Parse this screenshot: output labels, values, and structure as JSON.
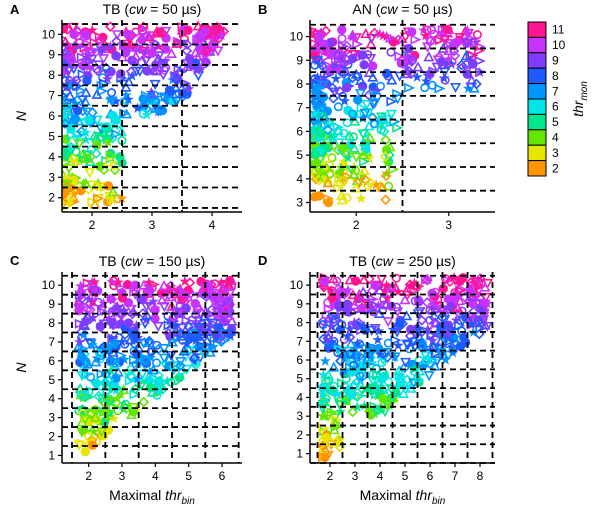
{
  "figure": {
    "colorbar": {
      "title": "thr",
      "title_sub": "mon",
      "levels": [
        11,
        10,
        9,
        8,
        7,
        6,
        5,
        4,
        3,
        2
      ],
      "colors": {
        "11": "#ff1493",
        "10": "#c832ff",
        "9": "#7f3cff",
        "8": "#1e5aff",
        "7": "#0096ff",
        "6": "#00e6e6",
        "5": "#00e68c",
        "4": "#64e600",
        "3": "#e6e600",
        "2": "#ff9600",
        "1": "#e60000"
      }
    },
    "shared_xlabel": {
      "main": "Maximal ",
      "italic": "thr",
      "sub": "bin"
    }
  },
  "chart_data": [
    {
      "panel": "A",
      "type": "scatter",
      "title": "TB (cw = 50 µs)",
      "title_parts": [
        "TB (",
        "cw",
        " = 50 µs)"
      ],
      "xlabel": "",
      "ylabel": "N",
      "xlim": [
        1.5,
        4.5
      ],
      "ylim": [
        1.3,
        10.7
      ],
      "xticks": [
        2,
        3,
        4
      ],
      "yticks": [
        2,
        3,
        4,
        5,
        6,
        7,
        8,
        9,
        10
      ],
      "grid": "dashed",
      "points_description": "Dense scatter of markers (circles, triangles, stars, diamonds) colored by thr_mon; values below are representative estimates.",
      "series": [
        {
          "x": [
            1.7,
            1.8,
            1.9,
            2.0,
            2.1,
            2.2,
            2.3,
            2.4,
            2.5
          ],
          "y": [
            10.0,
            9.6,
            9.2,
            8.8,
            8.2,
            7.6,
            6.8,
            5.8,
            4.8
          ]
        },
        {
          "x": [
            2.6,
            2.8,
            3.0,
            3.2,
            3.4,
            2.9,
            3.1
          ],
          "y": [
            10.0,
            9.6,
            9.2,
            8.6,
            7.8,
            7.0,
            6.2
          ]
        },
        {
          "x": [
            3.6,
            3.8,
            4.0,
            4.1,
            3.9
          ],
          "y": [
            10.2,
            9.8,
            9.6,
            9.2,
            8.6
          ]
        }
      ]
    },
    {
      "panel": "B",
      "type": "scatter",
      "title": "AN (cw = 50 µs)",
      "title_parts": [
        "AN (",
        "cw",
        " = 50 µs)"
      ],
      "xlabel": "",
      "ylabel": "",
      "xlim": [
        1.5,
        3.5
      ],
      "ylim": [
        2.6,
        10.7
      ],
      "xticks": [
        2,
        3
      ],
      "yticks": [
        3,
        4,
        5,
        6,
        7,
        8,
        9,
        10
      ],
      "grid": "dashed",
      "series": [
        {
          "x": [
            1.6,
            1.8,
            2.0,
            2.2,
            2.3,
            2.4
          ],
          "y": [
            10.0,
            9.2,
            8.4,
            7.2,
            6.0,
            4.4
          ]
        },
        {
          "x": [
            2.6,
            2.8,
            3.0,
            3.2,
            3.3
          ],
          "y": [
            10.2,
            9.8,
            9.4,
            8.6,
            8.0
          ]
        },
        {
          "x": [
            1.7,
            1.9,
            2.0
          ],
          "y": [
            3.0,
            3.2,
            3.6
          ]
        }
      ]
    },
    {
      "panel": "C",
      "type": "scatter",
      "title": "TB (cw = 150 µs)",
      "title_parts": [
        "TB (",
        "cw",
        " = 150 µs)"
      ],
      "xlabel": "Maximal thr_bin",
      "ylabel": "N",
      "xlim": [
        1.2,
        6.6
      ],
      "ylim": [
        0.6,
        10.7
      ],
      "xticks": [
        2,
        3,
        4,
        5,
        6
      ],
      "yticks": [
        1,
        2,
        3,
        4,
        5,
        6,
        7,
        8,
        9,
        10
      ],
      "grid": "dashed",
      "series": [
        {
          "x": [
            1.9,
            2.0,
            2.2,
            2.4,
            2.6,
            2.8,
            3.0,
            3.2
          ],
          "y": [
            1.2,
            2.0,
            3.0,
            4.0,
            5.0,
            6.0,
            7.0,
            8.0
          ]
        },
        {
          "x": [
            3.4,
            3.8,
            4.2,
            4.6,
            5.0,
            5.4
          ],
          "y": [
            10.0,
            9.6,
            9.2,
            8.6,
            7.8,
            6.8
          ]
        },
        {
          "x": [
            5.6,
            5.8,
            6.0,
            6.2
          ],
          "y": [
            10.0,
            9.6,
            9.8,
            9.2
          ]
        }
      ]
    },
    {
      "panel": "D",
      "type": "scatter",
      "title": "TB (cw = 250 µs)",
      "title_parts": [
        "TB (",
        "cw",
        " = 250 µs)"
      ],
      "xlabel": "Maximal thr_bin",
      "ylabel": "",
      "xlim": [
        1.2,
        8.6
      ],
      "ylim": [
        0.5,
        10.7
      ],
      "xticks": [
        2,
        3,
        4,
        5,
        6,
        7,
        8
      ],
      "yticks": [
        1,
        2,
        3,
        4,
        5,
        6,
        7,
        8,
        9,
        10
      ],
      "grid": "dashed",
      "series": [
        {
          "x": [
            1.8,
            2.0,
            2.2,
            2.4,
            2.6,
            2.8,
            3.0,
            3.4
          ],
          "y": [
            0.8,
            1.6,
            2.6,
            3.6,
            4.6,
            5.6,
            6.6,
            7.6
          ]
        },
        {
          "x": [
            3.8,
            4.4,
            5.0,
            5.6,
            6.2,
            6.8
          ],
          "y": [
            10.0,
            9.6,
            9.2,
            8.6,
            8.0,
            7.0
          ]
        },
        {
          "x": [
            7.2,
            7.6,
            8.0,
            8.2
          ],
          "y": [
            10.2,
            9.8,
            9.4,
            9.0
          ]
        }
      ]
    }
  ]
}
